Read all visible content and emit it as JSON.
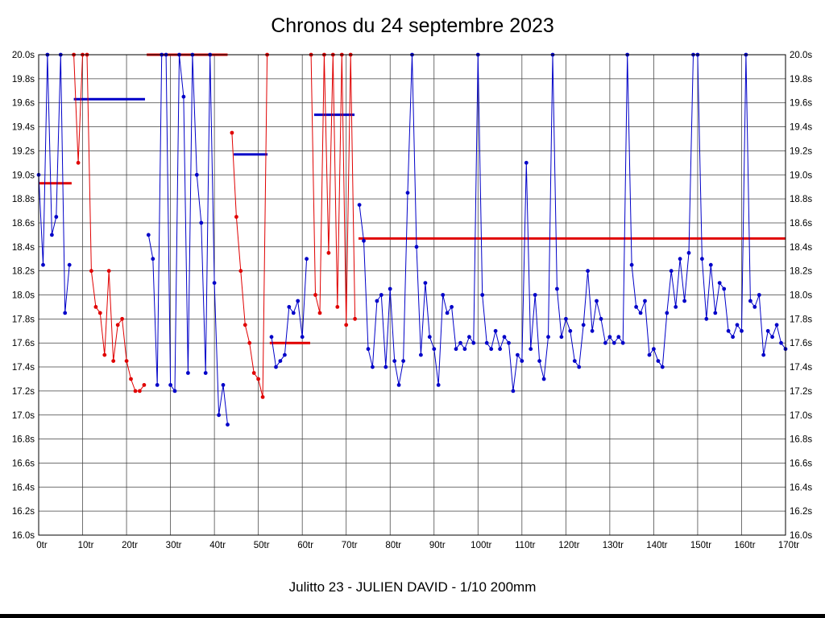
{
  "chart_data": {
    "type": "line",
    "title": "Chronos du 24 septembre 2023",
    "subtitle": "Julitto 23 - JULIEN DAVID - 1/10 200mm",
    "x_unit": "tr",
    "y_unit": "s",
    "xlim": [
      0,
      170
    ],
    "ylim": [
      16.0,
      20.0
    ],
    "grid": true,
    "legend": "none",
    "x_ticks": [
      "0tr",
      "10tr",
      "20tr",
      "30tr",
      "40tr",
      "50tr",
      "60tr",
      "70tr",
      "80tr",
      "90tr",
      "100tr",
      "110tr",
      "120tr",
      "130tr",
      "140tr",
      "150tr",
      "160tr",
      "170tr"
    ],
    "y_ticks": [
      "20.0s",
      "19.8s",
      "19.6s",
      "19.4s",
      "19.2s",
      "19.0s",
      "18.8s",
      "18.6s",
      "18.4s",
      "18.2s",
      "18.0s",
      "17.8s",
      "17.6s",
      "17.4s",
      "17.2s",
      "17.0s",
      "16.8s",
      "16.6s",
      "16.4s",
      "16.2s",
      "16.0s"
    ],
    "colors": {
      "red": "#e00000",
      "blue": "#0000c8",
      "grid": "#404040",
      "frame": "#000000",
      "text": "#000000"
    },
    "series": [
      {
        "name": "laps-red",
        "color": "#e00000",
        "runs": [
          [
            [
              8,
              20.0
            ],
            [
              9,
              19.1
            ],
            [
              10,
              20.0
            ],
            [
              11,
              20.0
            ],
            [
              12,
              18.2
            ],
            [
              13,
              17.9
            ],
            [
              14,
              17.85
            ],
            [
              15,
              17.5
            ],
            [
              16,
              18.2
            ],
            [
              17,
              17.45
            ],
            [
              18,
              17.75
            ],
            [
              19,
              17.8
            ],
            [
              20,
              17.45
            ],
            [
              21,
              17.3
            ],
            [
              22,
              17.2
            ],
            [
              23,
              17.2
            ],
            [
              24,
              17.25
            ]
          ],
          [
            [
              44,
              19.35
            ],
            [
              45,
              18.65
            ],
            [
              46,
              18.2
            ],
            [
              47,
              17.75
            ],
            [
              48,
              17.6
            ],
            [
              49,
              17.35
            ],
            [
              50,
              17.3
            ],
            [
              51,
              17.15
            ],
            [
              52,
              20.0
            ]
          ],
          [
            [
              62,
              20.0
            ],
            [
              63,
              18.0
            ],
            [
              64,
              17.85
            ],
            [
              65,
              20.0
            ],
            [
              66,
              18.35
            ],
            [
              67,
              20.0
            ],
            [
              68,
              17.9
            ],
            [
              69,
              20.0
            ],
            [
              70,
              17.75
            ],
            [
              71,
              20.0
            ],
            [
              72,
              17.8
            ]
          ]
        ]
      },
      {
        "name": "laps-blue",
        "color": "#0000c8",
        "runs": [
          [
            [
              0,
              19.0
            ],
            [
              1,
              18.25
            ],
            [
              2,
              20.0
            ],
            [
              3,
              18.5
            ],
            [
              4,
              18.65
            ],
            [
              5,
              20.0
            ],
            [
              6,
              17.85
            ],
            [
              7,
              18.25
            ]
          ],
          [
            [
              25,
              18.5
            ],
            [
              26,
              18.3
            ],
            [
              27,
              17.25
            ],
            [
              28,
              20.0
            ],
            [
              29,
              20.0
            ],
            [
              30,
              17.25
            ],
            [
              31,
              17.2
            ],
            [
              32,
              20.0
            ],
            [
              33,
              19.65
            ],
            [
              34,
              17.35
            ],
            [
              35,
              20.0
            ],
            [
              36,
              19.0
            ],
            [
              37,
              18.6
            ],
            [
              38,
              17.35
            ],
            [
              39,
              20.0
            ],
            [
              40,
              18.1
            ],
            [
              41,
              17.0
            ],
            [
              42,
              17.25
            ],
            [
              43,
              16.92
            ]
          ],
          [
            [
              53,
              17.65
            ],
            [
              54,
              17.4
            ],
            [
              55,
              17.45
            ],
            [
              56,
              17.5
            ],
            [
              57,
              17.9
            ],
            [
              58,
              17.85
            ],
            [
              59,
              17.95
            ],
            [
              60,
              17.65
            ],
            [
              61,
              18.3
            ]
          ],
          [
            [
              73,
              18.75
            ],
            [
              74,
              18.45
            ],
            [
              75,
              17.55
            ],
            [
              76,
              17.4
            ],
            [
              77,
              17.95
            ],
            [
              78,
              18.0
            ],
            [
              79,
              17.4
            ],
            [
              80,
              18.05
            ],
            [
              81,
              17.45
            ],
            [
              82,
              17.25
            ],
            [
              83,
              17.45
            ],
            [
              84,
              18.85
            ],
            [
              85,
              20.0
            ],
            [
              86,
              18.4
            ],
            [
              87,
              17.5
            ],
            [
              88,
              18.1
            ],
            [
              89,
              17.65
            ],
            [
              90,
              17.55
            ],
            [
              91,
              17.25
            ],
            [
              92,
              18.0
            ],
            [
              93,
              17.85
            ],
            [
              94,
              17.9
            ],
            [
              95,
              17.55
            ],
            [
              96,
              17.6
            ],
            [
              97,
              17.55
            ],
            [
              98,
              17.65
            ],
            [
              99,
              17.6
            ],
            [
              100,
              20.0
            ],
            [
              101,
              18.0
            ],
            [
              102,
              17.6
            ],
            [
              103,
              17.55
            ],
            [
              104,
              17.7
            ],
            [
              105,
              17.55
            ],
            [
              106,
              17.65
            ],
            [
              107,
              17.6
            ],
            [
              108,
              17.2
            ],
            [
              109,
              17.5
            ],
            [
              110,
              17.45
            ],
            [
              111,
              19.1
            ],
            [
              112,
              17.55
            ],
            [
              113,
              18.0
            ],
            [
              114,
              17.45
            ],
            [
              115,
              17.3
            ],
            [
              116,
              17.65
            ],
            [
              117,
              20.0
            ],
            [
              118,
              18.05
            ],
            [
              119,
              17.65
            ],
            [
              120,
              17.8
            ],
            [
              121,
              17.7
            ],
            [
              122,
              17.45
            ],
            [
              123,
              17.4
            ],
            [
              124,
              17.75
            ],
            [
              125,
              18.2
            ],
            [
              126,
              17.7
            ],
            [
              127,
              17.95
            ],
            [
              128,
              17.8
            ],
            [
              129,
              17.6
            ],
            [
              130,
              17.65
            ],
            [
              131,
              17.6
            ],
            [
              132,
              17.65
            ],
            [
              133,
              17.6
            ],
            [
              134,
              20.0
            ],
            [
              135,
              18.25
            ],
            [
              136,
              17.9
            ],
            [
              137,
              17.85
            ],
            [
              138,
              17.95
            ],
            [
              139,
              17.5
            ],
            [
              140,
              17.55
            ],
            [
              141,
              17.45
            ],
            [
              142,
              17.4
            ],
            [
              143,
              17.85
            ],
            [
              144,
              18.2
            ],
            [
              145,
              17.9
            ],
            [
              146,
              18.3
            ],
            [
              147,
              17.95
            ],
            [
              148,
              18.35
            ],
            [
              149,
              20.0
            ],
            [
              150,
              20.0
            ],
            [
              151,
              18.3
            ],
            [
              152,
              17.8
            ],
            [
              153,
              18.25
            ],
            [
              154,
              17.85
            ],
            [
              155,
              18.1
            ],
            [
              156,
              18.05
            ],
            [
              157,
              17.7
            ],
            [
              158,
              17.65
            ],
            [
              159,
              17.75
            ],
            [
              160,
              17.7
            ],
            [
              161,
              20.0
            ],
            [
              162,
              17.95
            ],
            [
              163,
              17.9
            ],
            [
              164,
              18.0
            ],
            [
              165,
              17.5
            ],
            [
              166,
              17.7
            ],
            [
              167,
              17.65
            ],
            [
              168,
              17.75
            ],
            [
              169,
              17.6
            ],
            [
              170,
              17.55
            ]
          ]
        ]
      }
    ],
    "average_lines": [
      {
        "color": "#e00000",
        "y": 18.93,
        "x1": 0,
        "x2": 7.5
      },
      {
        "color": "#0000c8",
        "y": 19.63,
        "x1": 8,
        "x2": 24.2
      },
      {
        "color": "#e00000",
        "y": 20.0,
        "x1": 24.6,
        "x2": 43
      },
      {
        "color": "#0000c8",
        "y": 19.17,
        "x1": 44.4,
        "x2": 52.1
      },
      {
        "color": "#e00000",
        "y": 17.6,
        "x1": 52.6,
        "x2": 61.8
      },
      {
        "color": "#0000c8",
        "y": 19.5,
        "x1": 62.7,
        "x2": 71.9
      },
      {
        "color": "#e00000",
        "y": 18.47,
        "x1": 72.8,
        "x2": 170
      }
    ]
  }
}
